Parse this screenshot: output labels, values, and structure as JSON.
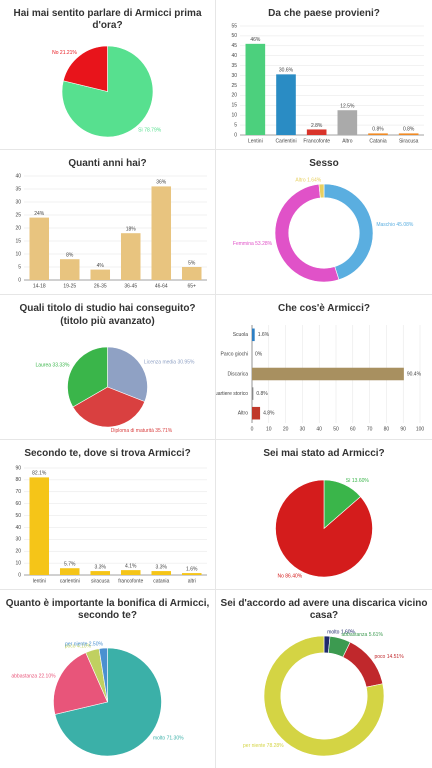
{
  "chart_data": [
    {
      "type": "pie",
      "title": "Hai mai sentito parlare di Armicci prima d'ora?",
      "values": [
        78.79,
        21.21
      ],
      "value_labels": [
        "Sì 78.79%",
        "No 21.21%"
      ],
      "colors": [
        "#57e08f",
        "#e8141b"
      ]
    },
    {
      "type": "bar",
      "title": "Da che paese provieni?",
      "categories": [
        "Lentini",
        "Carlentini",
        "Francofonte",
        "Altro",
        "Catania",
        "Siracusa"
      ],
      "values": [
        46,
        30.6,
        2.8,
        12.5,
        0.8,
        0.8
      ],
      "value_labels": [
        "46%",
        "30.6%",
        "2.8%",
        "12.5%",
        "0.8%",
        "0.8%"
      ],
      "colors": [
        "#4cd07d",
        "#2a8cc4",
        "#d9342b",
        "#aaaaaa",
        "#f08a24",
        "#f08a24"
      ],
      "ylim": [
        0,
        55
      ],
      "yticks": [
        0,
        5,
        10,
        15,
        20,
        25,
        30,
        35,
        40,
        45,
        50,
        55
      ],
      "grid": true
    },
    {
      "type": "bar",
      "title": "Quanti anni hai?",
      "categories": [
        "14-18",
        "19-25",
        "26-35",
        "36-45",
        "46-64",
        "65+"
      ],
      "values": [
        24,
        8,
        4,
        18,
        36,
        5
      ],
      "value_labels": [
        "24%",
        "8%",
        "4%",
        "18%",
        "36%",
        "5%"
      ],
      "color": "#e8c47f",
      "ylim": [
        0,
        40
      ],
      "yticks": [
        0,
        5,
        10,
        15,
        20,
        25,
        30,
        35,
        40
      ],
      "grid": true
    },
    {
      "type": "donut",
      "title": "Sesso",
      "values": [
        45.08,
        53.28,
        1.64
      ],
      "value_labels": [
        "Maschio 45.08%",
        "Femmina 53.28%",
        "Altro 1.64%"
      ],
      "colors": [
        "#5aaee0",
        "#e052c8",
        "#e8d060"
      ]
    },
    {
      "type": "pie",
      "title": "Quali titolo di studio hai conseguito?",
      "subtitle": "(titolo più avanzato)",
      "values": [
        30.95,
        35.71,
        33.33
      ],
      "value_labels": [
        "Licenza media 30.95%",
        "Diploma di maturità 35.71%",
        "Laurea 33.33%"
      ],
      "colors": [
        "#8fa1c4",
        "#d94040",
        "#3ab54a"
      ]
    },
    {
      "type": "hbar",
      "title": "Che cos'è Armicci?",
      "categories": [
        "Scuola",
        "Parco giochi",
        "Discarica",
        "Quartiere storico",
        "Altro"
      ],
      "values": [
        1.6,
        0,
        90.4,
        0.8,
        4.8
      ],
      "value_labels": [
        "1.6%",
        "0%",
        "90.4%",
        "0.8%",
        "4.8%"
      ],
      "colors": [
        "#2d7fc4",
        "#888888",
        "#a89060",
        "#888888",
        "#c0392b"
      ],
      "xlim": [
        0,
        100
      ],
      "xticks": [
        0,
        10,
        20,
        30,
        40,
        50,
        60,
        70,
        80,
        90,
        100
      ],
      "grid": true
    },
    {
      "type": "bar",
      "title": "Secondo te, dove si trova Armicci?",
      "categories": [
        "lentini",
        "carlentini",
        "siracusa",
        "francofonte",
        "catania",
        "altri"
      ],
      "values": [
        82.1,
        5.7,
        3.3,
        4.1,
        3.3,
        1.6
      ],
      "value_labels": [
        "82.1%",
        "5.7%",
        "3.3%",
        "4.1%",
        "3.3%",
        "1.6%"
      ],
      "color": "#f5c518",
      "ylim": [
        0,
        90
      ],
      "yticks": [
        0,
        10,
        20,
        30,
        40,
        50,
        60,
        70,
        80,
        90
      ],
      "grid": true
    },
    {
      "type": "pie",
      "title": "Sei mai stato ad Armicci?",
      "values": [
        13.6,
        86.4
      ],
      "value_labels": [
        "Sì 13.60%",
        "No 86.40%"
      ],
      "colors": [
        "#3ab54a",
        "#d41c1c"
      ]
    },
    {
      "type": "pie",
      "title": "Quanto è importante la bonifica di Armicci, secondo te?",
      "values": [
        71.3,
        22.1,
        4.1,
        2.5
      ],
      "value_labels": [
        "molto 71.30%",
        "abbastanza 22.10%",
        "poco 4.10%",
        "per niente 2.50%"
      ],
      "colors": [
        "#3bb0a8",
        "#e8557a",
        "#c0d060",
        "#4a90d0"
      ]
    },
    {
      "type": "donut",
      "title": "Sei d'accordo ad avere una discarica vicino casa?",
      "values": [
        1.6,
        5.61,
        14.51,
        78.28
      ],
      "value_labels": [
        "molto 1.60%",
        "abbastanza 5.61%",
        "poco 14.51%",
        "per niente 78.28%"
      ],
      "colors": [
        "#1f2a6b",
        "#3c9a50",
        "#c0282c",
        "#d4d444"
      ]
    }
  ]
}
